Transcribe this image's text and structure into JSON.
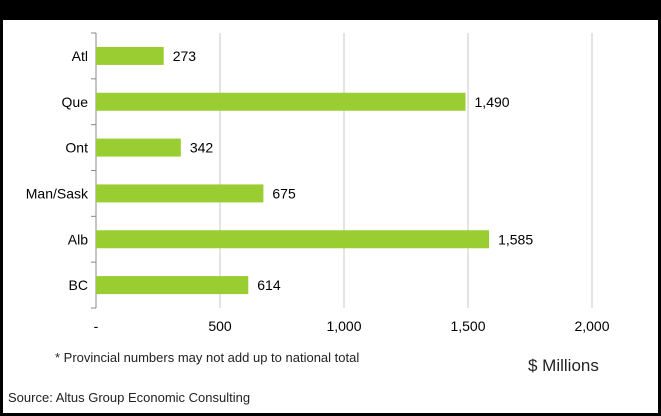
{
  "header": {
    "title": ""
  },
  "chart_data": {
    "type": "bar",
    "orientation": "horizontal",
    "categories": [
      "Atl",
      "Que",
      "Ont",
      "Man/Sask",
      "Alb",
      "BC"
    ],
    "values": [
      273,
      1490,
      342,
      675,
      1585,
      614
    ],
    "value_labels": [
      "273",
      "1,490",
      "342",
      "675",
      "1,585",
      "614"
    ],
    "xlim": [
      0,
      2000
    ],
    "xticks": [
      0,
      500,
      1000,
      1500,
      2000
    ],
    "xtick_labels": [
      "-",
      "500",
      "1,000",
      "1,500",
      "2,000"
    ],
    "bar_color": "#9ACD32",
    "grid": "vertical",
    "legend": "none"
  },
  "footnote": "* Provincial numbers may not add up to national total",
  "unit_label": "$ Millions",
  "source": "Source: Altus Group Economic Consulting"
}
